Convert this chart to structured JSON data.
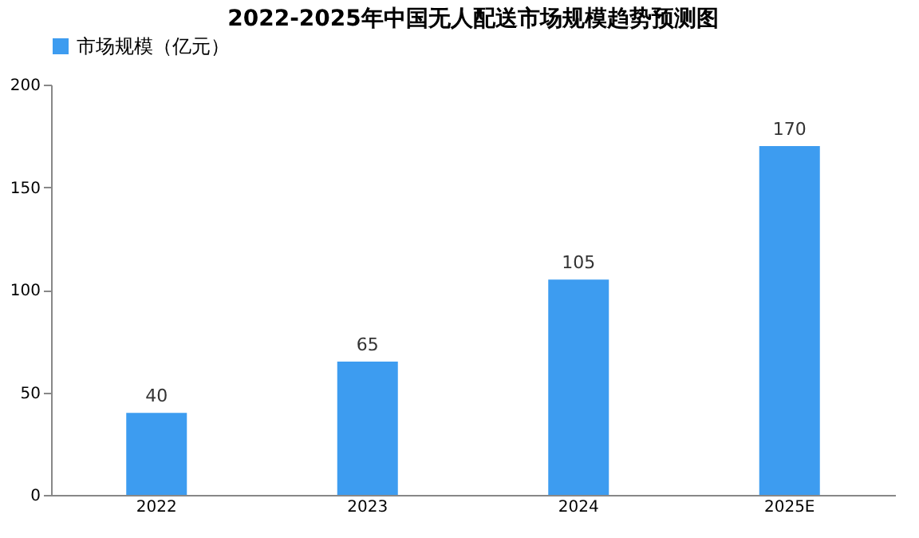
{
  "chart_data": {
    "type": "bar",
    "title": "2022-2025年中国无人配送市场规模趋势预测图",
    "categories": [
      "2022",
      "2023",
      "2024",
      "2025E"
    ],
    "series": [
      {
        "name": "市场规模（亿元）",
        "color": "#3d9cf0",
        "values": [
          40,
          65,
          105,
          170
        ]
      }
    ],
    "ylim": [
      0,
      200
    ],
    "yticks": [
      0,
      50,
      100,
      150,
      200
    ],
    "grid": false,
    "legend": "top",
    "data_labels": true
  }
}
